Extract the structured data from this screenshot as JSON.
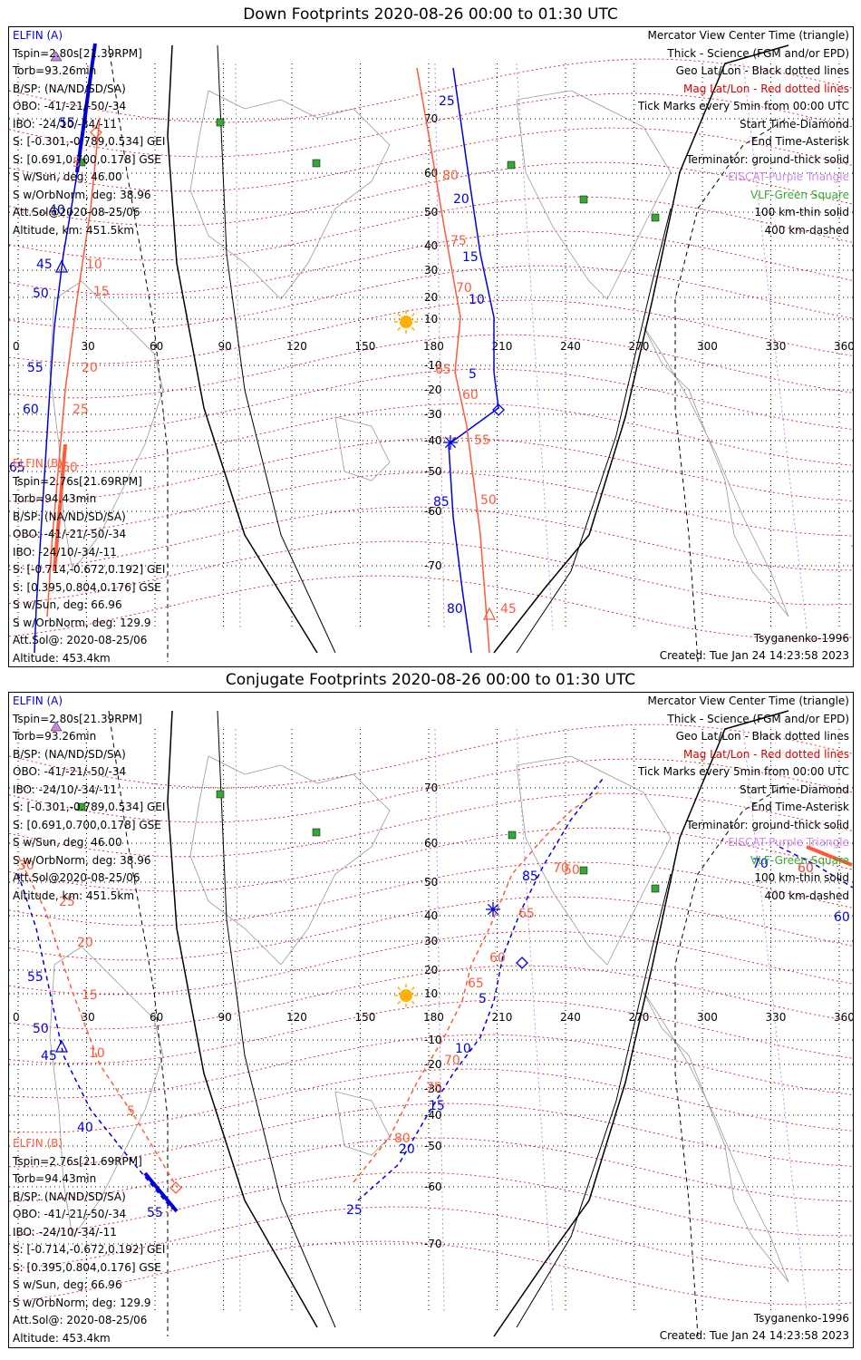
{
  "top": {
    "title": "Down Footprints 2020-08-26 00:00 to 01:30 UTC",
    "elfin_a": {
      "name": "ELFIN (A)",
      "lines": [
        "Tspin=2.80s[21.39RPM]",
        "Torb=93.26min",
        "B/SP: (NA/ND/SD/SA)",
        "OBO: -41/-21/-50/-34",
        "IBO: -24/10/-34/-11",
        "S: [-0.301,-0.789,0.534] GEI",
        "S: [0.691,0.700,0.178] GSE",
        "S w/Sun, deg: 46.00",
        "S w/OrbNorm, deg: 38.96",
        "Att.Sol@2020-08-25/06",
        "Altitude, km: 451.5km"
      ]
    },
    "elfin_b": {
      "name": "ELFIN (B)",
      "lines": [
        "Tspin=2.76s[21.69RPM]",
        "Torb=94.43min",
        "B/SP: (NA/ND/SD/SA)",
        "OBO: -41/-21/-50/-34",
        "IBO: -24/10/-34/-11",
        "S: [-0.714,-0.672,0.192] GEI",
        "S: [0.395,0.804,0.176] GSE",
        "S w/Sun, deg: 66.96",
        "S w/OrbNorm, deg: 129.9",
        "Att.Sol@: 2020-08-25/06",
        "Altitude: 453.4km"
      ]
    },
    "model": "Tsyganenko-1996",
    "created": "Created: Tue Jan 24 14:23:58 2023"
  },
  "bottom": {
    "title": "Conjugate Footprints 2020-08-26 00:00 to 01:30 UTC",
    "elfin_a": {
      "name": "ELFIN (A)",
      "lines": [
        "Tspin=2.80s[21.39RPM]",
        "Torb=93.26min",
        "B/SP: (NA/ND/SD/SA)",
        "OBO: -41/-21/-50/-34",
        "IBO: -24/10/-34/-11",
        "S: [-0.301,-0.789,0.534] GEI",
        "S: [0.691,0.700,0.178] GSE",
        "S w/Sun, deg: 46.00",
        "S w/OrbNorm, deg: 38.96",
        "Att.Sol@2020-08-25/06",
        "Altitude, km: 451.5km"
      ]
    },
    "elfin_b": {
      "name": "ELFIN (B)",
      "lines": [
        "Tspin=2.76s[21.69RPM]",
        "Torb=94.43min",
        "B/SP: (NA/ND/SD/SA)",
        "OBO: -41/-21/-50/-34",
        "IBO: -24/10/-34/-11",
        "S: [-0.714,-0.672,0.192] GEI",
        "S: [0.395,0.804,0.176] GSE",
        "S w/Sun, deg: 66.96",
        "S w/OrbNorm, deg: 129.9",
        "Att.Sol@: 2020-08-25/06",
        "Altitude: 453.4km"
      ]
    },
    "model": "Tsyganenko-1996",
    "created": "Created: Tue Jan 24 14:23:58 2023"
  },
  "legend": [
    {
      "text": "Mercator View Center Time (triangle)",
      "color": "#000000"
    },
    {
      "text": "Thick - Science (FGM and/or EPD)",
      "color": "#000000"
    },
    {
      "text": "Geo Lat/Lon - Black dotted lines",
      "color": "#000000"
    },
    {
      "text": "Mag Lat/Lon - Red dotted lines",
      "color": "#dd0000"
    },
    {
      "text": "Tick Marks every 5min from 00:00 UTC",
      "color": "#000000"
    },
    {
      "text": "Start Time-Diamond",
      "color": "#000000"
    },
    {
      "text": "End Time-Asterisk",
      "color": "#000000"
    },
    {
      "text": "Terminator: ground-thick solid",
      "color": "#000000"
    },
    {
      "text": "EISCAT-Purple Triangle",
      "color": "#cc88ee"
    },
    {
      "text": "VLF-Green Square",
      "color": "#33aa33"
    },
    {
      "text": "100 km-thin solid",
      "color": "#000000"
    },
    {
      "text": "400 km-dashed",
      "color": "#000000"
    }
  ],
  "axes": {
    "lon_ticks": [
      "0",
      "30",
      "60",
      "90",
      "120",
      "150",
      "180",
      "210",
      "240",
      "270",
      "300",
      "330",
      "360"
    ],
    "lat_ticks": [
      "70",
      "60",
      "50",
      "40",
      "30",
      "20",
      "10",
      "-10",
      "-20",
      "-30",
      "-40",
      "-50",
      "-60",
      "-70"
    ]
  },
  "colors": {
    "elfin_a": "#0000dd",
    "elfin_b": "#ff5a3c",
    "mag_grid": "#dd0000",
    "eiscat": "#cc88ee",
    "vlf": "#33aa33",
    "sun": "#ffb000"
  },
  "top_tick_labels": {
    "a": [
      "55",
      "40",
      "45",
      "50",
      "55",
      "60",
      "65",
      "85",
      "80",
      "25",
      "20",
      "15",
      "10",
      "5"
    ],
    "b": [
      "5",
      "10",
      "15",
      "20",
      "25",
      "60",
      "80",
      "75",
      "70",
      "65",
      "60",
      "55",
      "50",
      "45",
      "70"
    ]
  },
  "bottom_tick_labels": {
    "a": [
      "55",
      "50",
      "45",
      "40",
      "55",
      "85",
      "5",
      "10",
      "15",
      "20",
      "25",
      "70",
      "60",
      "60"
    ],
    "b": [
      "30",
      "25",
      "20",
      "15",
      "10",
      "5",
      "70",
      "65",
      "60",
      "65",
      "70",
      "75",
      "80",
      "50",
      "60"
    ]
  }
}
